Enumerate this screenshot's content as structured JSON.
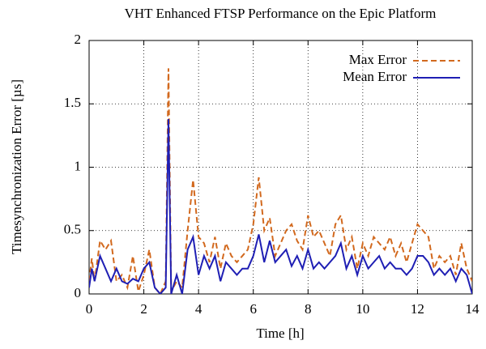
{
  "chart_data": {
    "type": "line",
    "title": "VHT Enhanced FTSP Performance on the Epic Platform",
    "xlabel": "Time [h]",
    "ylabel": "Timesynchronization Error [µs]",
    "x": [
      0,
      0.1,
      0.2,
      0.4,
      0.6,
      0.8,
      1.0,
      1.2,
      1.4,
      1.6,
      1.8,
      2.0,
      2.2,
      2.4,
      2.6,
      2.8,
      2.9,
      3.0,
      3.2,
      3.4,
      3.6,
      3.8,
      4.0,
      4.2,
      4.4,
      4.6,
      4.8,
      5.0,
      5.2,
      5.4,
      5.6,
      5.8,
      6.0,
      6.2,
      6.4,
      6.6,
      6.8,
      7.0,
      7.2,
      7.4,
      7.6,
      7.8,
      8.0,
      8.2,
      8.4,
      8.6,
      8.8,
      9.0,
      9.2,
      9.4,
      9.6,
      9.8,
      10.0,
      10.2,
      10.4,
      10.6,
      10.8,
      11.0,
      11.2,
      11.4,
      11.6,
      11.8,
      12.0,
      12.2,
      12.4,
      12.6,
      12.8,
      13.0,
      13.2,
      13.4,
      13.6,
      13.8,
      14.0
    ],
    "series": [
      {
        "name": "Max Error",
        "color": "#d2691e",
        "dash": true,
        "values": [
          0.1,
          0.28,
          0.1,
          0.42,
          0.35,
          0.42,
          0.1,
          0.15,
          0.05,
          0.3,
          0.02,
          0.15,
          0.35,
          0.05,
          0.0,
          0.1,
          1.78,
          0.02,
          0.1,
          0.05,
          0.5,
          0.9,
          0.45,
          0.4,
          0.25,
          0.45,
          0.2,
          0.4,
          0.3,
          0.25,
          0.3,
          0.35,
          0.55,
          0.92,
          0.5,
          0.6,
          0.3,
          0.4,
          0.5,
          0.55,
          0.42,
          0.35,
          0.62,
          0.45,
          0.5,
          0.4,
          0.3,
          0.55,
          0.62,
          0.35,
          0.45,
          0.2,
          0.4,
          0.3,
          0.45,
          0.4,
          0.35,
          0.45,
          0.3,
          0.4,
          0.25,
          0.4,
          0.55,
          0.5,
          0.45,
          0.2,
          0.3,
          0.25,
          0.3,
          0.15,
          0.4,
          0.2,
          0.1
        ]
      },
      {
        "name": "Mean Error",
        "color": "#1f1fb4",
        "dash": false,
        "values": [
          0.05,
          0.2,
          0.1,
          0.3,
          0.2,
          0.1,
          0.2,
          0.1,
          0.08,
          0.12,
          0.1,
          0.2,
          0.25,
          0.05,
          0.0,
          0.05,
          1.38,
          0.0,
          0.15,
          0.0,
          0.35,
          0.45,
          0.15,
          0.3,
          0.2,
          0.3,
          0.1,
          0.25,
          0.2,
          0.15,
          0.2,
          0.2,
          0.3,
          0.47,
          0.25,
          0.42,
          0.25,
          0.3,
          0.35,
          0.22,
          0.3,
          0.2,
          0.35,
          0.2,
          0.25,
          0.2,
          0.25,
          0.3,
          0.4,
          0.2,
          0.3,
          0.15,
          0.3,
          0.2,
          0.25,
          0.3,
          0.2,
          0.25,
          0.2,
          0.2,
          0.15,
          0.2,
          0.3,
          0.3,
          0.25,
          0.15,
          0.2,
          0.15,
          0.2,
          0.1,
          0.2,
          0.15,
          0.0
        ]
      }
    ],
    "xlim": [
      0,
      14
    ],
    "xticks": [
      0,
      2,
      4,
      6,
      8,
      10,
      12,
      14
    ],
    "ylim": [
      0,
      2
    ],
    "yticks": [
      0,
      0.5,
      1,
      1.5,
      2
    ],
    "grid": true,
    "legend": "upper right"
  }
}
